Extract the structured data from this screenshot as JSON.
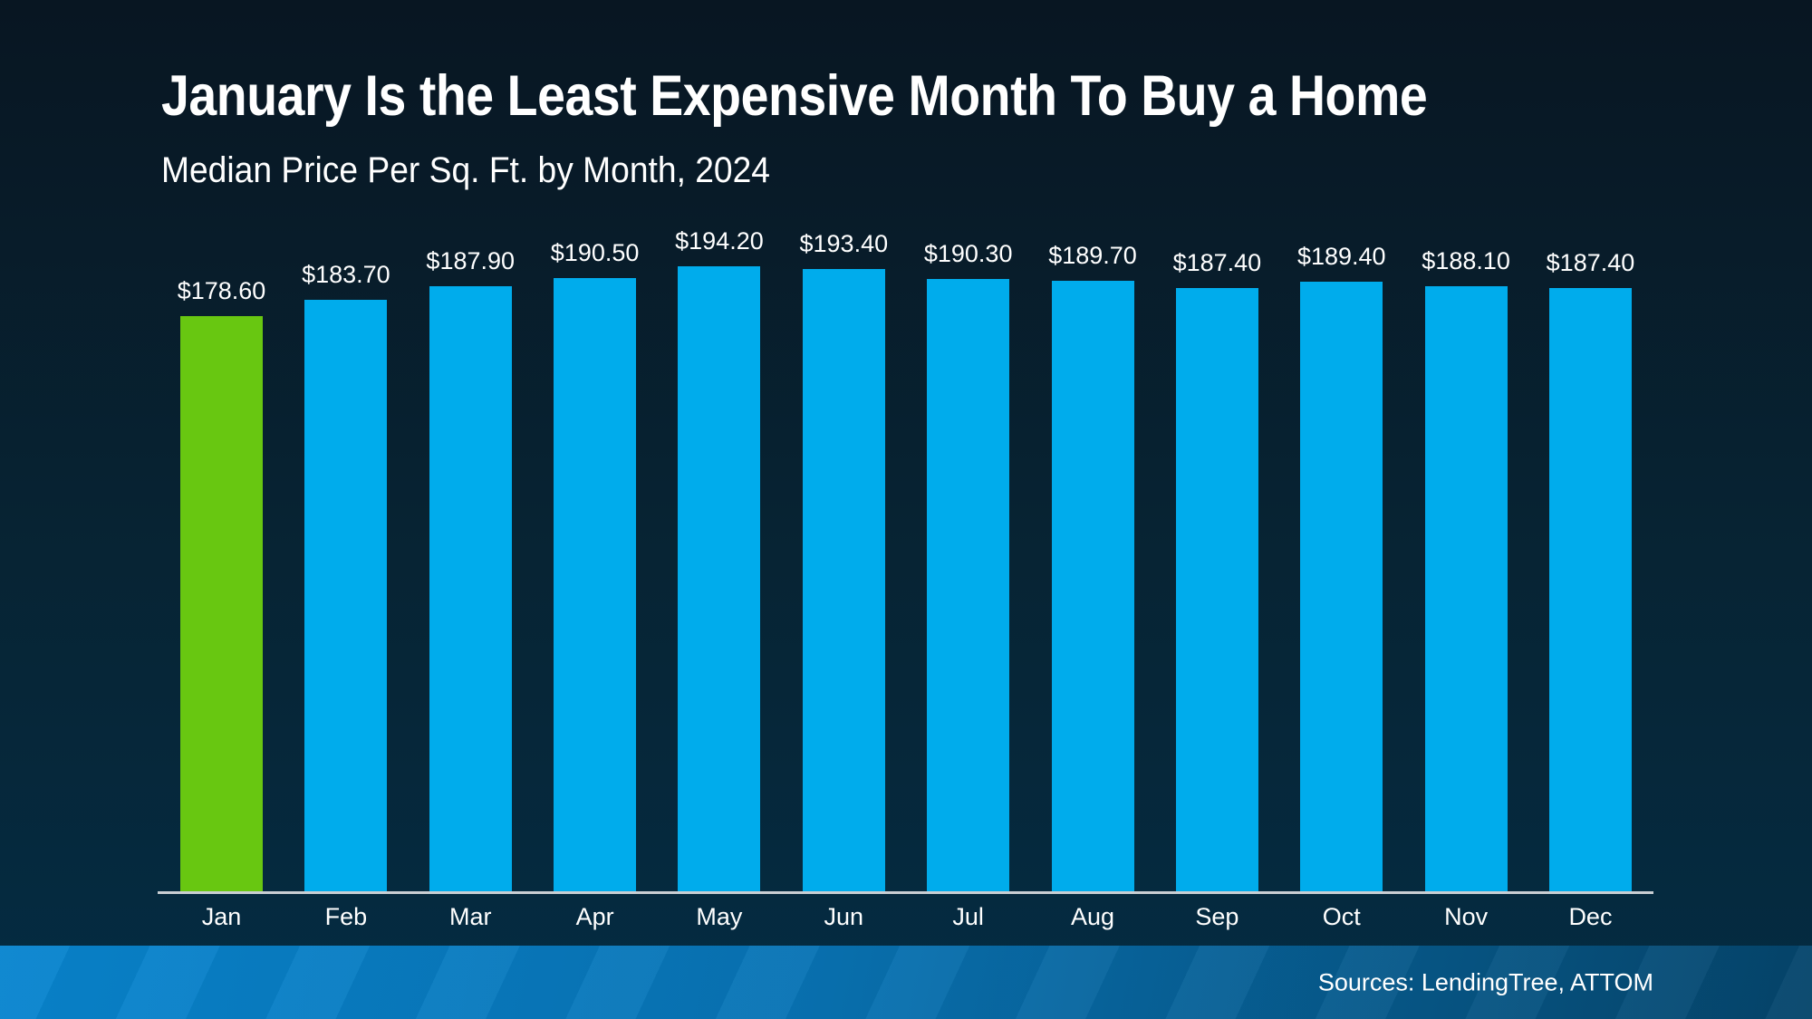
{
  "header": {
    "title": "January Is the Least Expensive Month To Buy a Home",
    "subtitle": "Median Price Per Sq. Ft. by Month, 2024"
  },
  "chart_data": {
    "type": "bar",
    "title": "January Is the Least Expensive Month To Buy a Home",
    "subtitle": "Median Price Per Sq. Ft. by Month, 2024",
    "categories": [
      "Jan",
      "Feb",
      "Mar",
      "Apr",
      "May",
      "Jun",
      "Jul",
      "Aug",
      "Sep",
      "Oct",
      "Nov",
      "Dec"
    ],
    "values": [
      178.6,
      183.7,
      187.9,
      190.5,
      194.2,
      193.4,
      190.3,
      189.7,
      187.4,
      189.4,
      188.1,
      187.4
    ],
    "value_labels": [
      "$178.60",
      "$183.70",
      "$187.90",
      "$190.50",
      "$194.20",
      "$193.40",
      "$190.30",
      "$189.70",
      "$187.40",
      "$189.40",
      "$188.10",
      "$187.40"
    ],
    "highlight_index": 0,
    "ylim": [
      0,
      194.2
    ],
    "grid": false,
    "legend": "none",
    "colors": {
      "bar": "#00ACEC",
      "highlight_bar": "#68C711",
      "axis_line": "#C9CED3",
      "text": "#FFFFFF",
      "background_top": "#081622",
      "background_bottom": "#042C43",
      "footer_left": "#0885CF",
      "footer_mid": "#0873B4",
      "footer_right": "#05456B"
    }
  },
  "footer": {
    "sources": "Sources: LendingTree, ATTOM"
  }
}
